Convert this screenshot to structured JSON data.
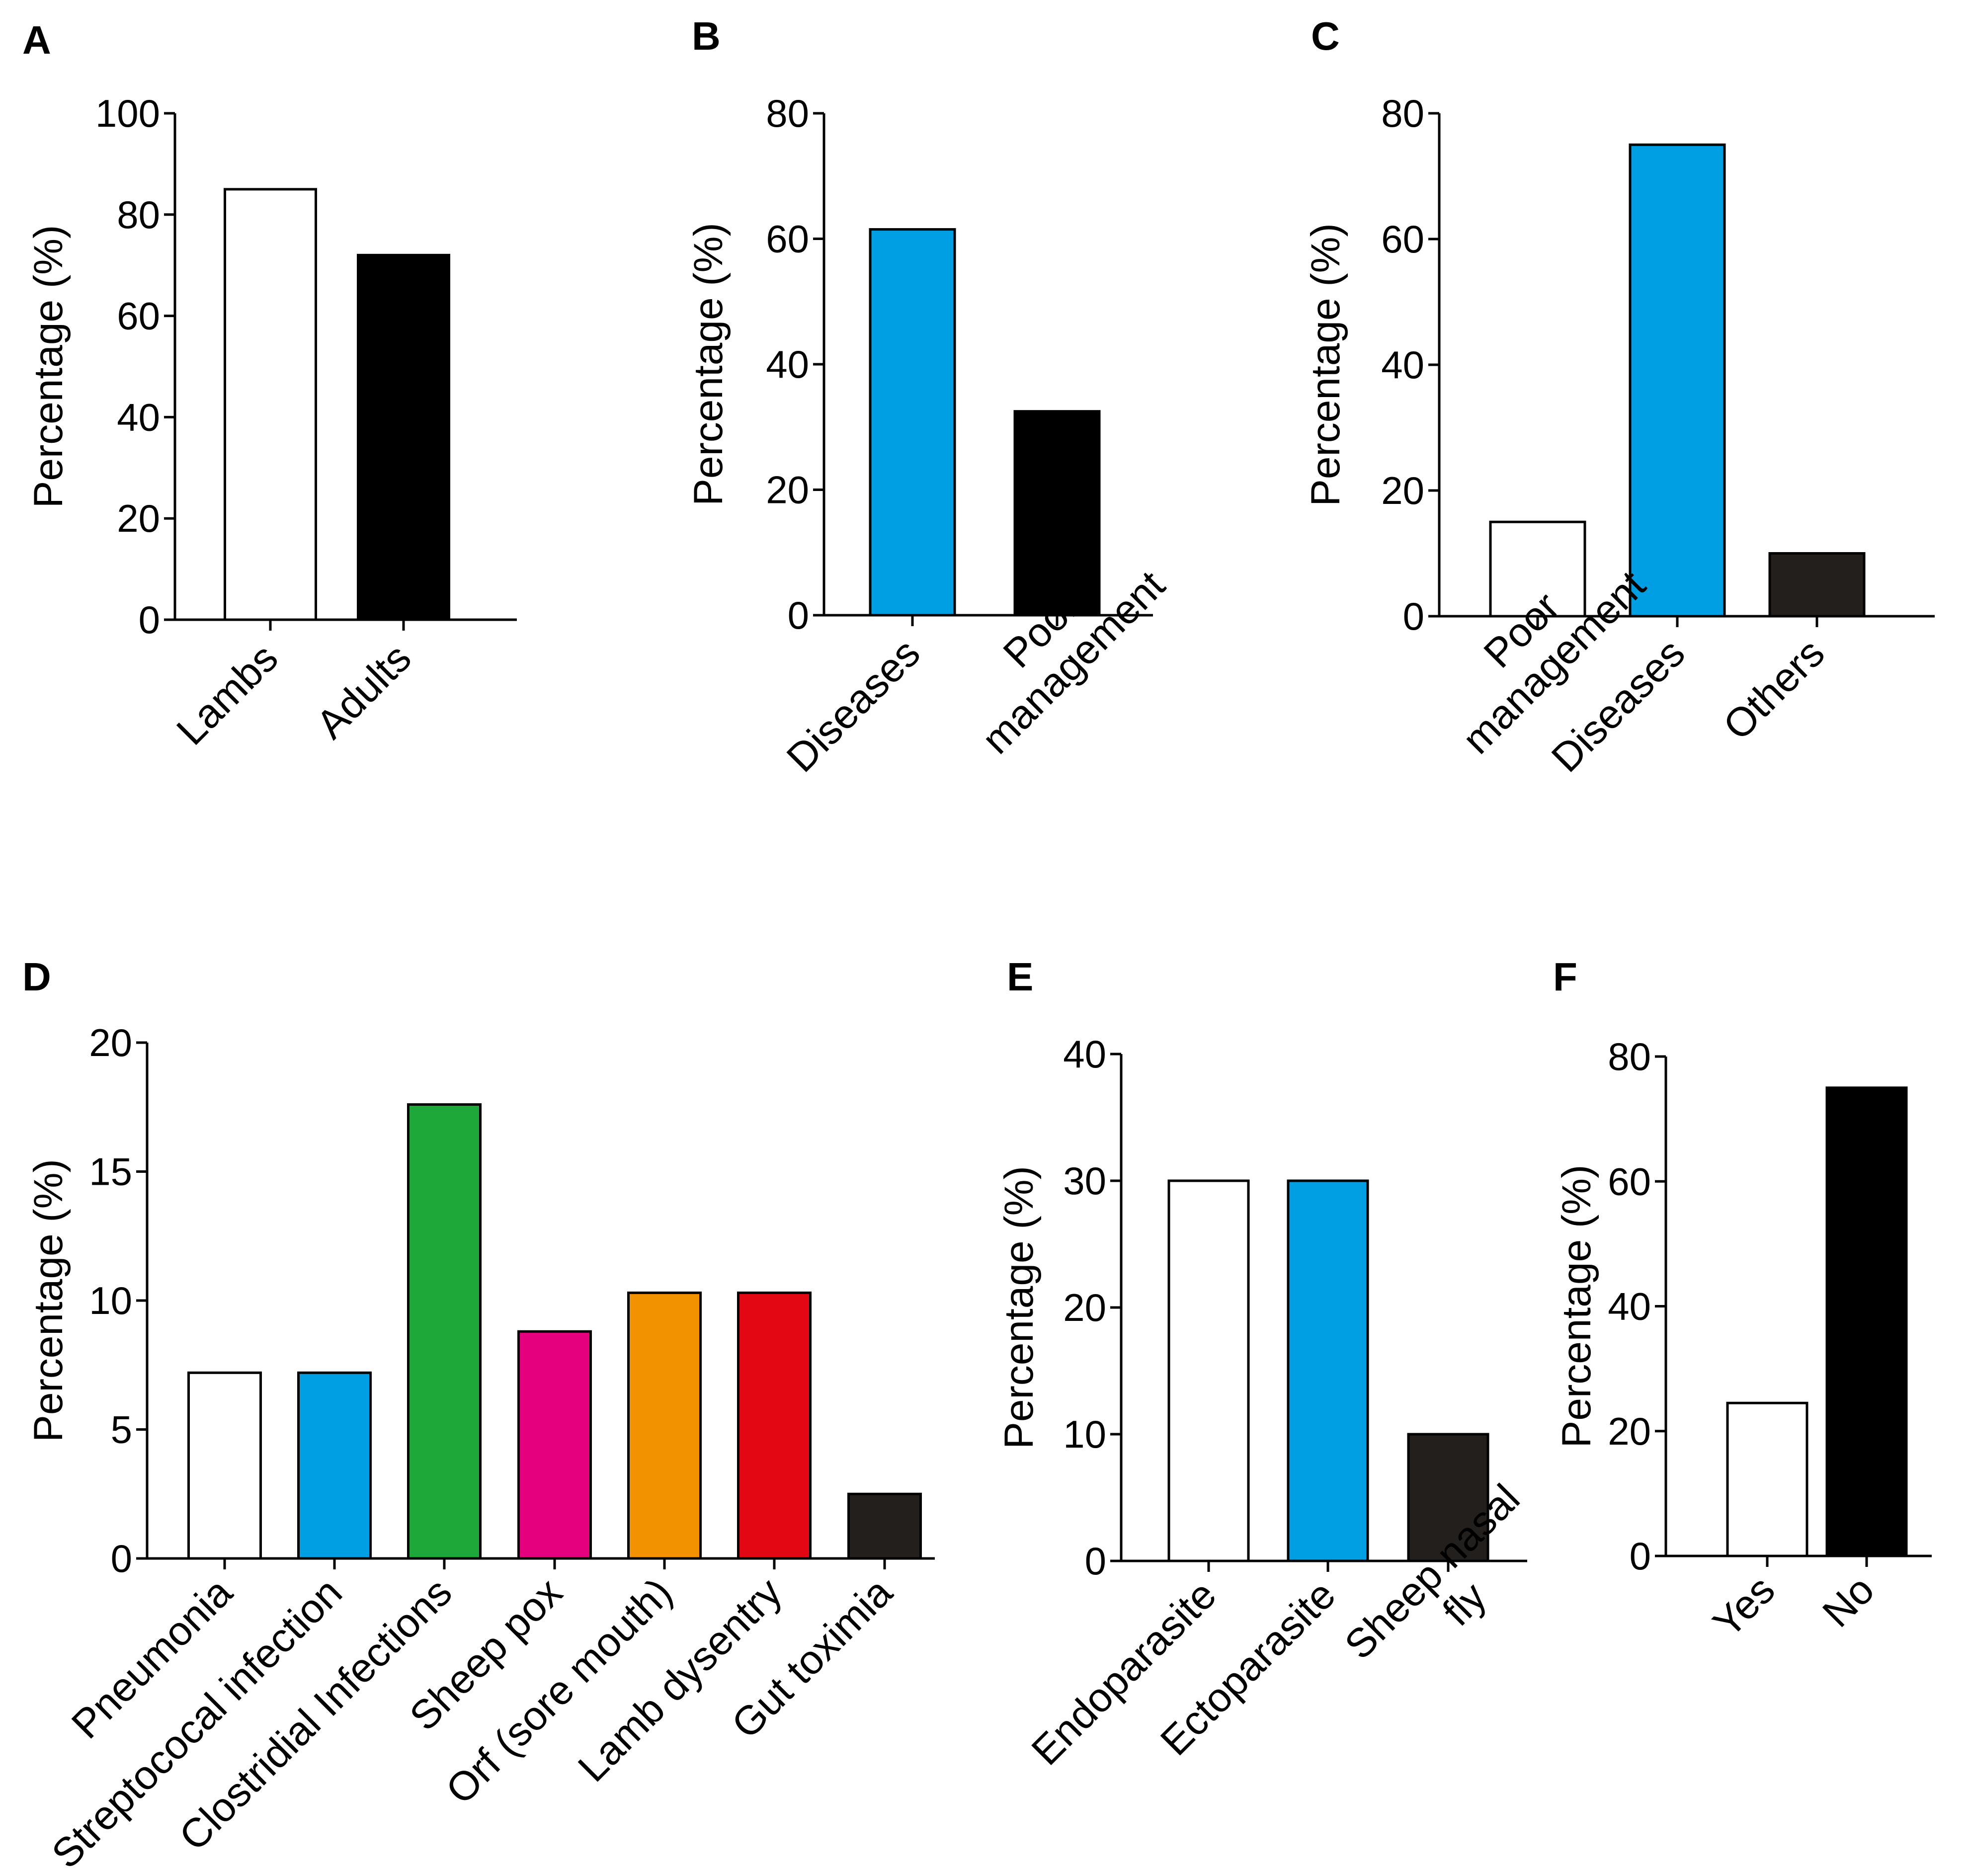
{
  "chart_data": [
    {
      "panel": "A",
      "type": "bar",
      "ylabel": "Percentage (%)",
      "ylim": [
        0,
        100
      ],
      "yticks": [
        0,
        20,
        40,
        60,
        80,
        100
      ],
      "categories": [
        "Lambs",
        "Adults"
      ],
      "values": [
        85,
        72
      ],
      "colors": [
        "#ffffff",
        "#000000"
      ]
    },
    {
      "panel": "B",
      "type": "bar",
      "ylabel": "Percentage (%)",
      "ylim": [
        0,
        80
      ],
      "yticks": [
        0,
        20,
        40,
        60,
        80
      ],
      "categories": [
        "Diseases",
        "Poor management"
      ],
      "category_lines": [
        [
          "Diseases"
        ],
        [
          "Poor",
          "management"
        ]
      ],
      "values": [
        61.5,
        32.5
      ],
      "colors": [
        "#009fe3",
        "#000000"
      ]
    },
    {
      "panel": "C",
      "type": "bar",
      "ylabel": "Percentage (%)",
      "ylim": [
        0,
        80
      ],
      "yticks": [
        0,
        20,
        40,
        60,
        80
      ],
      "categories": [
        "Poor management",
        "Diseases",
        "Others"
      ],
      "category_lines": [
        [
          "Poor",
          "management"
        ],
        [
          "Diseases"
        ],
        [
          "Others"
        ]
      ],
      "values": [
        15,
        75,
        10
      ],
      "colors": [
        "#ffffff",
        "#009fe3",
        "#231f1c"
      ]
    },
    {
      "panel": "D",
      "type": "bar",
      "ylabel": "Percentage (%)",
      "ylim": [
        0,
        20
      ],
      "yticks": [
        0,
        5,
        10,
        15,
        20
      ],
      "categories": [
        "Pneumonia",
        "Streptococal infection",
        "Clostridial Infections",
        "Sheep pox",
        "Orf (sore mouth)",
        "Lamb dysentry",
        "Gut toximia"
      ],
      "values": [
        7.2,
        7.2,
        17.6,
        8.8,
        10.3,
        10.3,
        2.5
      ],
      "colors": [
        "#ffffff",
        "#009fe3",
        "#1fa83a",
        "#e5007e",
        "#f39200",
        "#e30613",
        "#231f1c"
      ]
    },
    {
      "panel": "E",
      "type": "bar",
      "ylabel": "Percentage (%)",
      "ylim": [
        0,
        40
      ],
      "yticks": [
        0,
        10,
        20,
        30,
        40
      ],
      "categories": [
        "Endoparasite",
        "Ectoparasite",
        "Sheep nasal fly"
      ],
      "category_lines": [
        [
          "Endoparasite"
        ],
        [
          "Ectoparasite"
        ],
        [
          "Sheep nasal",
          "fly"
        ]
      ],
      "values": [
        30,
        30,
        10
      ],
      "colors": [
        "#ffffff",
        "#009fe3",
        "#231f1c"
      ]
    },
    {
      "panel": "F",
      "type": "bar",
      "ylabel": "Percentage (%)",
      "ylim": [
        0,
        80
      ],
      "yticks": [
        0,
        20,
        40,
        60,
        80
      ],
      "categories": [
        "Yes",
        "No"
      ],
      "values": [
        24.5,
        75
      ],
      "colors": [
        "#ffffff",
        "#000000"
      ]
    }
  ]
}
